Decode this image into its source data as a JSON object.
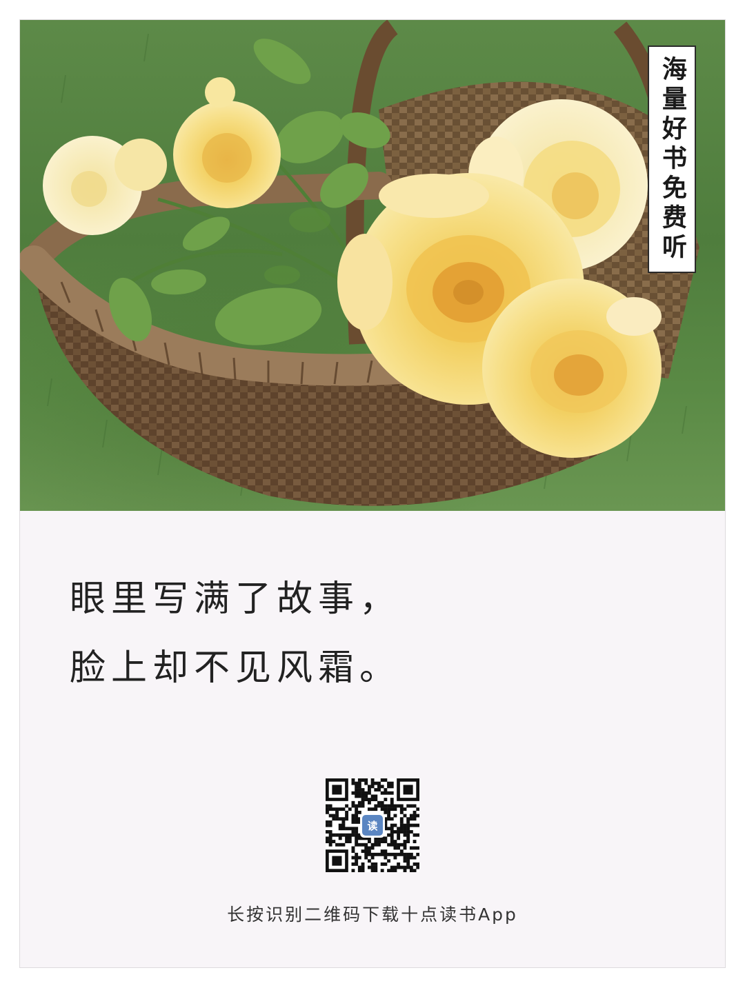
{
  "photo": {
    "subject": "yellow-roses-in-wicker-basket-on-grass",
    "colors": {
      "grass": "#5a8a45",
      "basket": "#6b4e33",
      "rose": "#f3d568",
      "leaf": "#6fa14a"
    }
  },
  "tag": {
    "text": "海量好书免费听"
  },
  "quote": {
    "line1": "眼里写满了故事，",
    "line2": "脸上却不见风霜。"
  },
  "qr": {
    "icon": "qr-code-icon",
    "logo_icon": "app-logo-icon"
  },
  "caption": {
    "text": "长按识别二维码下载十点读书App"
  }
}
